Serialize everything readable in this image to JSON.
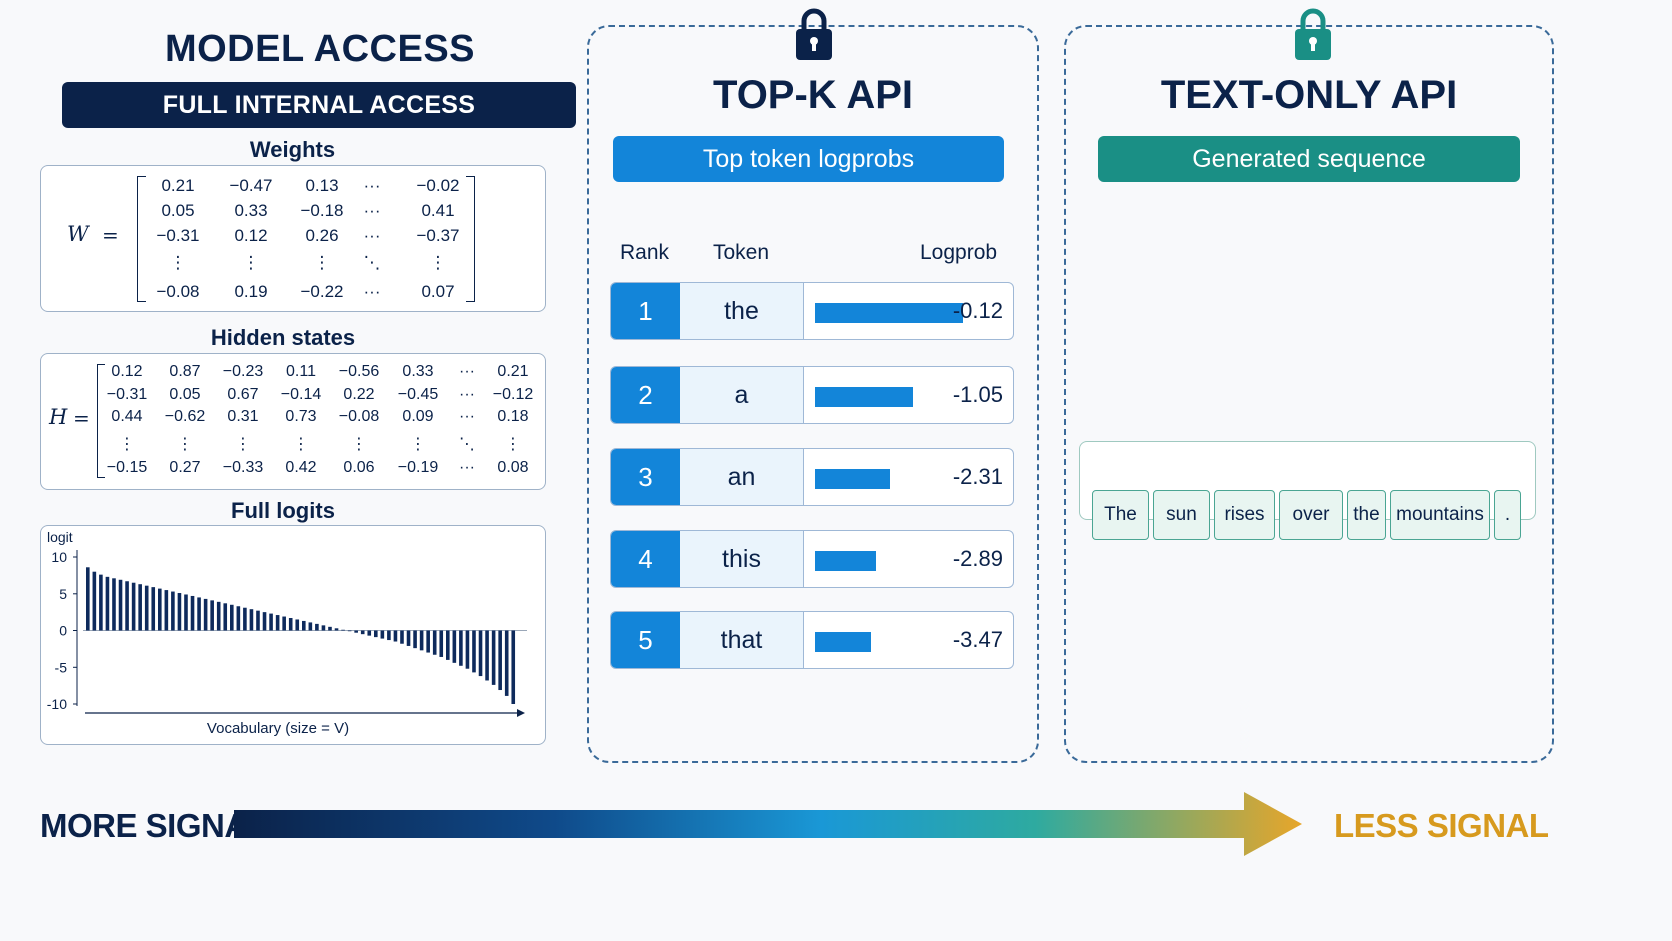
{
  "model_access": {
    "title": "MODEL ACCESS",
    "badge": "FULL INTERNAL ACCESS",
    "weights": {
      "title": "Weights",
      "symbol": "W",
      "equals": "=",
      "rows": [
        [
          "0.21",
          "−0.47",
          "0.13",
          "···",
          "−0.02"
        ],
        [
          "0.05",
          "0.33",
          "−0.18",
          "···",
          "0.41"
        ],
        [
          "−0.31",
          "0.12",
          "0.26",
          "···",
          "−0.37"
        ],
        [
          "⋮",
          "⋮",
          "⋮",
          "⋱",
          "⋮"
        ],
        [
          "−0.08",
          "0.19",
          "−0.22",
          "···",
          "0.07"
        ]
      ]
    },
    "hidden_states": {
      "title": "Hidden states",
      "symbol": "H",
      "equals": "=",
      "rows": [
        [
          "0.12",
          "0.87",
          "−0.23",
          "0.11",
          "−0.56",
          "0.33",
          "···",
          "0.21"
        ],
        [
          "−0.31",
          "0.05",
          "0.67",
          "−0.14",
          "0.22",
          "−0.45",
          "···",
          "−0.12"
        ],
        [
          "0.44",
          "−0.62",
          "0.31",
          "0.73",
          "−0.08",
          "0.09",
          "···",
          "0.18"
        ],
        [
          "⋮",
          "⋮",
          "⋮",
          "⋮",
          "⋮",
          "⋮",
          "⋱",
          "⋮"
        ],
        [
          "−0.15",
          "0.27",
          "−0.33",
          "0.42",
          "0.06",
          "−0.19",
          "···",
          "0.08"
        ]
      ]
    },
    "full_logits": {
      "title": "Full logits",
      "ylabel": "logit",
      "xlabel": "Vocabulary (size = V)",
      "yticks": [
        "10",
        "5",
        "0",
        "-5",
        "-10"
      ]
    }
  },
  "chart_data": {
    "type": "bar",
    "title": "Full logits",
    "xlabel": "Vocabulary (size = V)",
    "ylabel": "logit",
    "ylim": [
      -10,
      10
    ],
    "yticks": [
      10,
      5,
      0,
      -5,
      -10
    ],
    "values": [
      8.6,
      8.0,
      7.6,
      7.3,
      7.1,
      6.9,
      6.7,
      6.5,
      6.3,
      6.1,
      5.9,
      5.7,
      5.5,
      5.3,
      5.1,
      4.9,
      4.7,
      4.5,
      4.3,
      4.1,
      3.9,
      3.7,
      3.5,
      3.3,
      3.1,
      2.9,
      2.7,
      2.5,
      2.3,
      2.1,
      1.9,
      1.7,
      1.5,
      1.3,
      1.1,
      0.9,
      0.7,
      0.5,
      0.3,
      0.1,
      -0.1,
      -0.3,
      -0.5,
      -0.7,
      -0.9,
      -1.1,
      -1.3,
      -1.5,
      -1.8,
      -2.1,
      -2.4,
      -2.7,
      -3.0,
      -3.3,
      -3.6,
      -4.0,
      -4.4,
      -4.8,
      -5.2,
      -5.7,
      -6.2,
      -6.8,
      -7.4,
      -8.1,
      -8.9,
      -10.0
    ]
  },
  "topk": {
    "title": "TOP-K API",
    "pill": "Top token logprobs",
    "headers": {
      "rank": "Rank",
      "token": "Token",
      "logprob": "Logprob"
    },
    "rows": [
      {
        "rank": "1",
        "token": "the",
        "logprob": "-0.12",
        "fraction": 1.0
      },
      {
        "rank": "2",
        "token": "a",
        "logprob": "-1.05",
        "fraction": 0.66
      },
      {
        "rank": "3",
        "token": "an",
        "logprob": "-2.31",
        "fraction": 0.51
      },
      {
        "rank": "4",
        "token": "this",
        "logprob": "-2.89",
        "fraction": 0.41
      },
      {
        "rank": "5",
        "token": "that",
        "logprob": "-3.47",
        "fraction": 0.38
      }
    ]
  },
  "textonly": {
    "title": "TEXT-ONLY API",
    "pill": "Generated sequence",
    "tokens": [
      "The",
      "sun",
      "rises",
      "over",
      "the",
      "mountains",
      "."
    ]
  },
  "signal": {
    "more": "MORE SIGNAL",
    "less": "LESS SIGNAL"
  },
  "colors": {
    "navy": "#0b2249",
    "blue": "#1385d9",
    "teal": "#1a8f85",
    "gold": "#e0a52a"
  },
  "icons": [
    "lock-icon",
    "lock-icon"
  ]
}
